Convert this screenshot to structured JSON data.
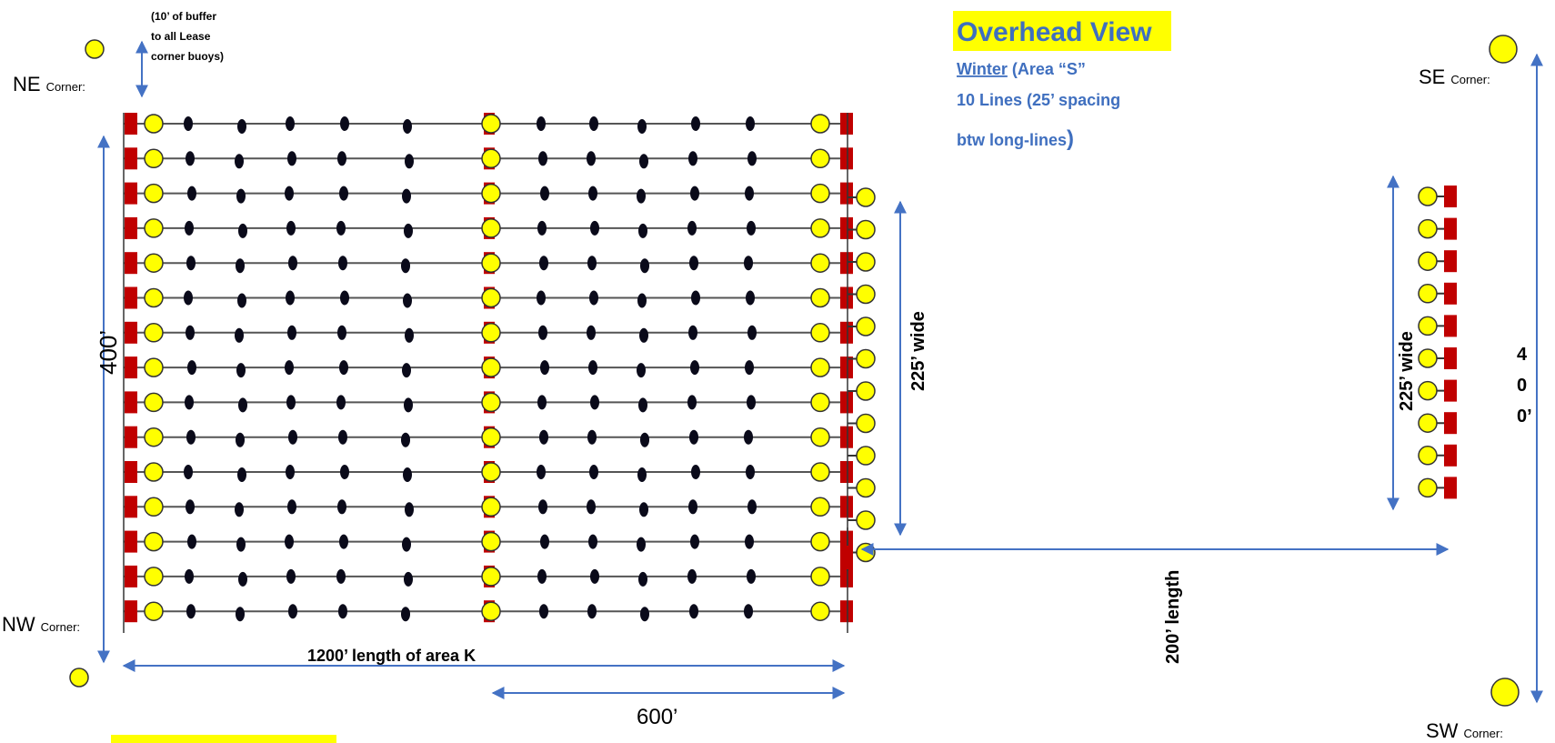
{
  "corners": {
    "ne": {
      "main": "NE",
      "sub": "Corner:"
    },
    "se": {
      "main": "SE",
      "sub": "Corner:"
    },
    "nw": {
      "main": "NW",
      "sub": "Corner:"
    },
    "sw": {
      "main": "SW",
      "sub": "Corner:"
    }
  },
  "buffer_note": [
    "(10’ of buffer",
    "to all Lease",
    "corner buoys)"
  ],
  "title": {
    "heading": "Overhead View",
    "season": "Winter",
    "area_rest": " (Area “S”",
    "line2": "10 Lines (25’ spacing",
    "line3a": "btw  long-lines",
    "line3b": ")"
  },
  "dimensions": {
    "height_400": "400’",
    "length_1200": "1200’ length of area K",
    "length_600": "600’",
    "wide_225_a": "225’ wide",
    "wide_225_b": "225’ wide",
    "length_200": "200’ length",
    "vertical_400": [
      "4",
      "0",
      "0’"
    ]
  },
  "layout_counts": {
    "long_lines_main": 15,
    "buoys_winter_block": 12,
    "lines_area_s": 10
  },
  "colors": {
    "anchor": "#c00000",
    "buoy": "#ffff00",
    "dim_arrow": "#4472c4",
    "highlight": "#ffff00"
  }
}
